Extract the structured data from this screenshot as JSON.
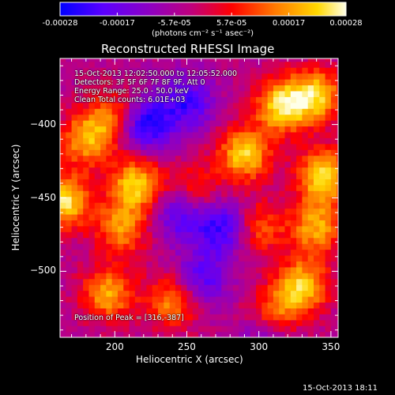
{
  "colorbar": {
    "tick_labels": [
      "-0.00028",
      "-0.00017",
      "-5.7e-05",
      "5.7e-05",
      "0.00017",
      "0.00028"
    ],
    "units": "(photons cm⁻² s⁻¹ asec⁻²)",
    "range": [
      -0.00028,
      0.00028
    ],
    "colormap": [
      "#0000ff",
      "#5a00ff",
      "#9000c0",
      "#c0007c",
      "#ff0000",
      "#ff7800",
      "#ffd800",
      "#ffffe8"
    ]
  },
  "image": {
    "title": "Reconstructed RHESSI Image",
    "info_lines": [
      "15-Oct-2013 12:02:50.000 to 12:05:52.000",
      "Detectors: 3F 5F 6F 7F 8F 9F, Att 0",
      "Energy Range: 25.0 - 50.0 keV",
      "Clean    Total counts: 6.01E+03"
    ],
    "peak_label": "Position of Peak = [316,-387]",
    "timestamp": "15-Oct-2013 18:11"
  },
  "chart_data": {
    "type": "heatmap",
    "title": "Reconstructed RHESSI Image",
    "xlabel": "Heliocentric X (arcsec)",
    "ylabel": "Heliocentric Y (arcsec)",
    "xlim": [
      162,
      355
    ],
    "ylim": [
      -545,
      -355
    ],
    "x_ticks": [
      200,
      250,
      300,
      350
    ],
    "y_ticks": [
      -400,
      -450,
      -500
    ],
    "x_tick_labels": [
      "200",
      "250",
      "300",
      "350"
    ],
    "y_tick_labels": [
      "-400",
      "-450",
      "-500"
    ],
    "grid": false,
    "peak": [
      316,
      -387
    ],
    "value_range": [
      -0.00028,
      0.00028
    ],
    "bright_regions": [
      {
        "x": 165,
        "y": -452,
        "value": 0.00028
      },
      {
        "x": 180,
        "y": -410,
        "value": 0.00022
      },
      {
        "x": 200,
        "y": -395,
        "value": 0.00018
      },
      {
        "x": 215,
        "y": -440,
        "value": 0.00026
      },
      {
        "x": 205,
        "y": -470,
        "value": 0.0002
      },
      {
        "x": 195,
        "y": -515,
        "value": 0.00022
      },
      {
        "x": 240,
        "y": -520,
        "value": 0.0002
      },
      {
        "x": 290,
        "y": -420,
        "value": 0.00026
      },
      {
        "x": 316,
        "y": -387,
        "value": 0.00028
      },
      {
        "x": 340,
        "y": -380,
        "value": 0.00025
      },
      {
        "x": 345,
        "y": -435,
        "value": 0.00028
      },
      {
        "x": 340,
        "y": -470,
        "value": 0.00022
      },
      {
        "x": 330,
        "y": -510,
        "value": 0.00026
      },
      {
        "x": 300,
        "y": -470,
        "value": 0.00016
      },
      {
        "x": 310,
        "y": -530,
        "value": 0.00018
      },
      {
        "x": 255,
        "y": -445,
        "value": 0.00014
      }
    ],
    "dark_regions": [
      {
        "x": 220,
        "y": -400,
        "value": -0.00024
      },
      {
        "x": 250,
        "y": -385,
        "value": -0.00018
      },
      {
        "x": 245,
        "y": -460,
        "value": -0.00018
      },
      {
        "x": 260,
        "y": -505,
        "value": -0.00016
      },
      {
        "x": 275,
        "y": -470,
        "value": -0.0002
      },
      {
        "x": 305,
        "y": -545,
        "value": -0.00014
      }
    ]
  }
}
